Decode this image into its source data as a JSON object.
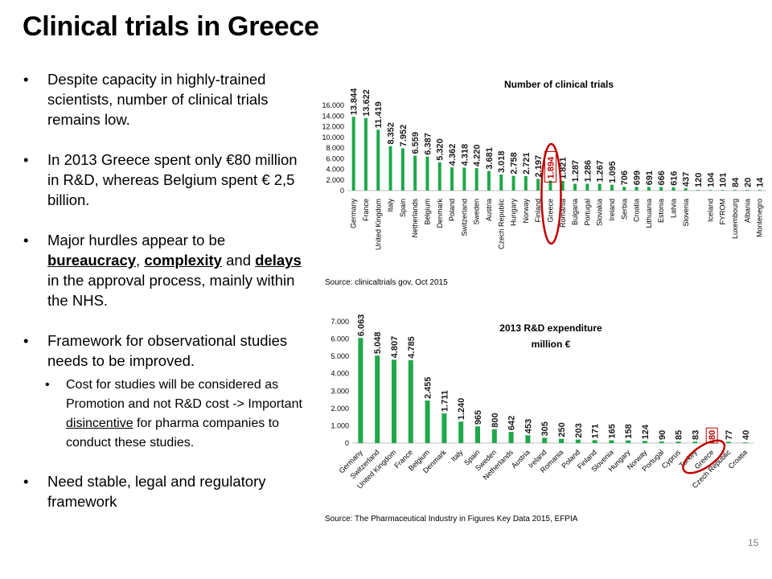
{
  "slide": {
    "title": "Clinical trials in Greece",
    "page_number": "15",
    "bullets": {
      "b1": "Despite capacity in highly-trained scientists, number of clinical trials remains low.",
      "b2": "In 2013 Greece spent only €80 million in R&D, whereas Belgium spent € 2,5 billion.",
      "b3_pre": "Major hurdles appear to be ",
      "b3_w1": "bureaucracy",
      "b3_sep1": ", ",
      "b3_w2": "complexity",
      "b3_sep2": " and ",
      "b3_w3": "delays",
      "b3_post": " in the approval process, mainly within the NHS.",
      "b4": "Framework for observational studies needs to be improved.",
      "sub1_pre": "Cost for studies will be considered as Promotion and not R&D cost -> Important ",
      "sub1_u": "disincentive",
      "sub1_post": " for pharma companies to conduct these studies.",
      "b5": "Need stable, legal and regulatory framework"
    }
  },
  "chart_data": [
    {
      "type": "bar",
      "title": "Number of  clinical trials",
      "source": "Source: clinicaltrials gov, Oct 2015",
      "categories": [
        "Germany",
        "France",
        "United Kingdom",
        "Italy",
        "Spain",
        "Netherlands",
        "Belgium",
        "Denmark",
        "Poland",
        "Switzerland",
        "Sweden",
        "Austria",
        "Czech Republic",
        "Hungary",
        "Norway",
        "Finland",
        "Greece",
        "Romania",
        "Bulgaria",
        "Portugal",
        "Slovakia",
        "Ireland",
        "Serbia",
        "Croatia",
        "Lithuania",
        "Estonia",
        "Latvia",
        "Slovenia",
        "",
        "Iceland",
        "FYROM",
        "Luxembourg",
        "Albania",
        "Montenegro"
      ],
      "values": [
        13844,
        13622,
        11419,
        8352,
        7952,
        6559,
        6387,
        5320,
        4362,
        4318,
        4220,
        3681,
        3018,
        2758,
        2721,
        2197,
        1894,
        1821,
        1287,
        1286,
        1267,
        1095,
        706,
        699,
        691,
        666,
        616,
        437,
        120,
        104,
        101,
        84,
        20,
        14
      ],
      "value_labels": [
        "13.844",
        "13.622",
        "11.419",
        "8.352",
        "7.952",
        "6.559",
        "6.387",
        "5.320",
        "4.362",
        "4.318",
        "4.220",
        "3.681",
        "3.018",
        "2.758",
        "2.721",
        "2.197",
        "1.894",
        "1.821",
        "1.287",
        "1.286",
        "1.267",
        "1.095",
        "706",
        "699",
        "691",
        "666",
        "616",
        "437",
        "120",
        "104",
        "101",
        "84",
        "20",
        "14"
      ],
      "yticks": [
        "0",
        "2.000",
        "4.000",
        "6.000",
        "8.000",
        "10.000",
        "12.000",
        "14.000",
        "16.000"
      ],
      "ylim": [
        0,
        16000
      ],
      "highlight": "Greece",
      "highlight_color": "#c00000",
      "bar_color": "#1fa84a"
    },
    {
      "type": "bar",
      "title": "2013 R&D expenditure",
      "subtitle": "million €",
      "source": "Source: The Pharmaceutical Industry in Figures Key Data 2015, EFPIA",
      "categories": [
        "Germany",
        "Switzerland",
        "United Kingdom",
        "France",
        "Belgium",
        "Denmark",
        "Italy",
        "Spain",
        "Sweden",
        "Netherlands",
        "Austria",
        "Ireland",
        "Romania",
        "Poland",
        "Finland",
        "Slovenia",
        "Hungary",
        "Norway",
        "Portugal",
        "Cyprus",
        "Turkey",
        "Greece",
        "Czech Republic",
        "Croatia"
      ],
      "values": [
        6063,
        5048,
        4807,
        4785,
        2455,
        1711,
        1240,
        965,
        800,
        642,
        453,
        305,
        250,
        203,
        171,
        165,
        158,
        124,
        90,
        85,
        83,
        80,
        77,
        40
      ],
      "value_labels": [
        "6.063",
        "5.048",
        "4.807",
        "4.785",
        "2.455",
        "1.711",
        "1.240",
        "965",
        "800",
        "642",
        "453",
        "305",
        "250",
        "203",
        "171",
        "165",
        "158",
        "124",
        "90",
        "85",
        "83",
        "80",
        "77",
        "40"
      ],
      "yticks": [
        "0",
        "1.000",
        "2.000",
        "3.000",
        "4.000",
        "5.000",
        "6.000",
        "7.000"
      ],
      "ylim": [
        0,
        7000
      ],
      "highlight": "Greece",
      "highlight_color": "#c00000",
      "bar_color": "#1fa84a"
    }
  ]
}
